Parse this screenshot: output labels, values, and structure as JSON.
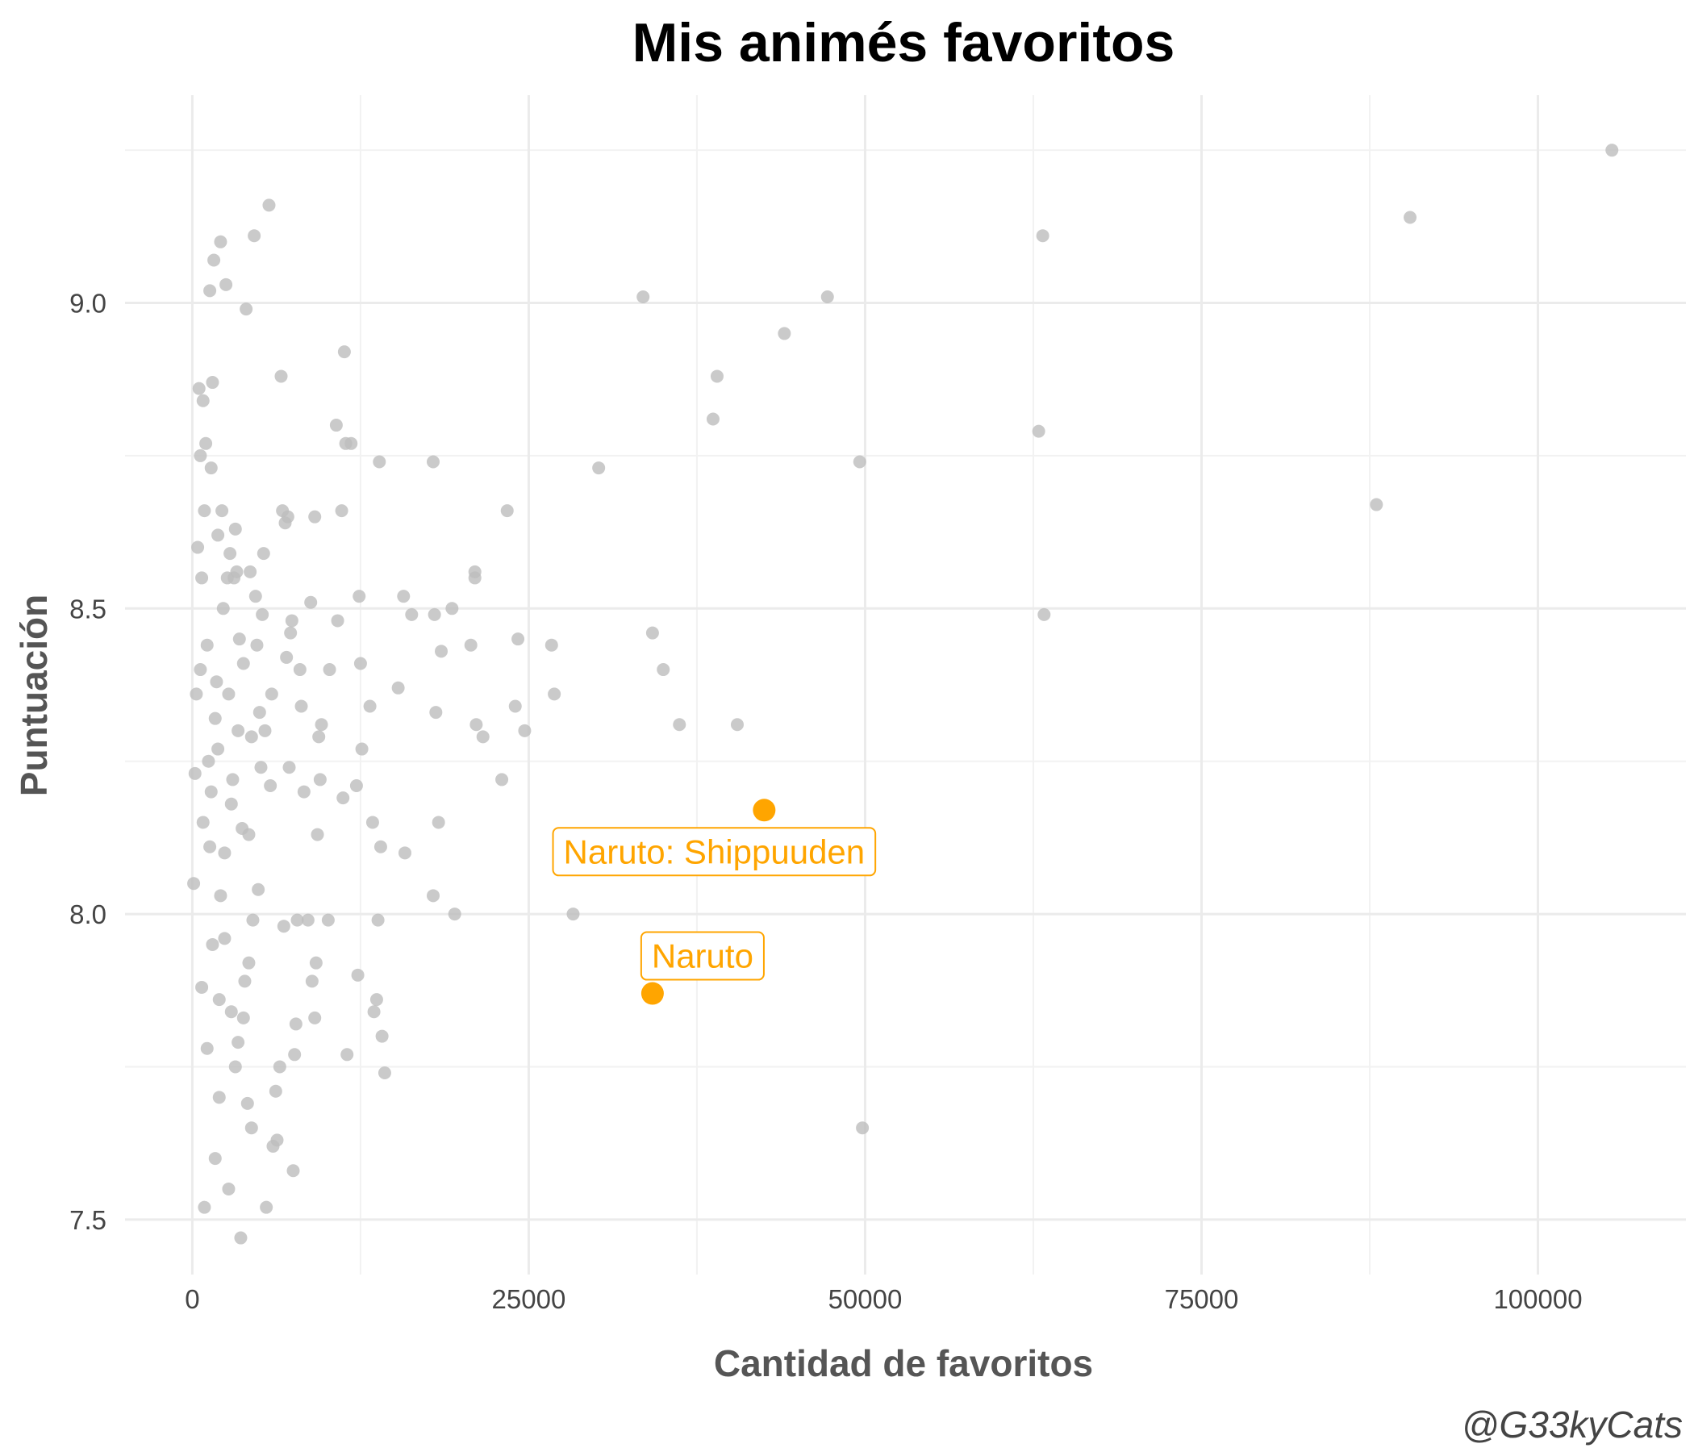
{
  "chart_data": {
    "type": "scatter",
    "title": "Mis animés favoritos",
    "xlabel": "Cantidad de favoritos",
    "ylabel": "Puntuación",
    "caption": "@G33kyCats",
    "xlim": [
      -5000,
      111000
    ],
    "ylim": [
      7.41,
      9.34
    ],
    "x_ticks": [
      0,
      25000,
      50000,
      75000,
      100000
    ],
    "x_tick_labels": [
      "0",
      "25000",
      "50000",
      "75000",
      "100000"
    ],
    "y_ticks": [
      7.5,
      8.0,
      8.5,
      9.0
    ],
    "y_tick_labels": [
      "7.5",
      "8.0",
      "8.5",
      "9.0"
    ],
    "grid": true,
    "point_color": "#bdbdbd",
    "highlight_color": "#ffa500",
    "highlights": [
      {
        "label": "Naruto: Shippuuden",
        "x": 42500,
        "y": 8.17
      },
      {
        "label": "Naruto",
        "x": 34200,
        "y": 7.87
      }
    ],
    "points": [
      [
        105500,
        9.25
      ],
      [
        90500,
        9.14
      ],
      [
        63200,
        9.11
      ],
      [
        47200,
        9.01
      ],
      [
        33500,
        9.01
      ],
      [
        44000,
        8.95
      ],
      [
        39000,
        8.88
      ],
      [
        38700,
        8.81
      ],
      [
        62900,
        8.79
      ],
      [
        49600,
        8.74
      ],
      [
        30200,
        8.73
      ],
      [
        88000,
        8.67
      ],
      [
        63300,
        8.49
      ],
      [
        34200,
        8.46
      ],
      [
        35000,
        8.4
      ],
      [
        36200,
        8.31
      ],
      [
        40500,
        8.31
      ],
      [
        28300,
        8.0
      ],
      [
        49800,
        7.65
      ],
      [
        23400,
        8.66
      ],
      [
        26700,
        8.44
      ],
      [
        26900,
        8.36
      ],
      [
        24200,
        8.45
      ],
      [
        24000,
        8.34
      ],
      [
        24700,
        8.3
      ],
      [
        23000,
        8.22
      ],
      [
        21000,
        8.56
      ],
      [
        21000,
        8.55
      ],
      [
        20700,
        8.44
      ],
      [
        21100,
        8.31
      ],
      [
        21600,
        8.29
      ],
      [
        19500,
        8.0
      ],
      [
        19300,
        8.5
      ],
      [
        18500,
        8.43
      ],
      [
        18000,
        8.49
      ],
      [
        18100,
        8.33
      ],
      [
        18300,
        8.15
      ],
      [
        17900,
        8.74
      ],
      [
        17900,
        8.03
      ],
      [
        16300,
        8.49
      ],
      [
        15700,
        8.52
      ],
      [
        15800,
        8.1
      ],
      [
        15300,
        8.37
      ],
      [
        13900,
        8.74
      ],
      [
        14000,
        8.11
      ],
      [
        13800,
        7.99
      ],
      [
        13700,
        7.86
      ],
      [
        13500,
        7.84
      ],
      [
        14100,
        7.8
      ],
      [
        14300,
        7.74
      ],
      [
        13200,
        8.34
      ],
      [
        13400,
        8.15
      ],
      [
        12600,
        8.27
      ],
      [
        12500,
        8.41
      ],
      [
        12400,
        8.52
      ],
      [
        12300,
        7.9
      ],
      [
        12200,
        8.21
      ],
      [
        11800,
        8.77
      ],
      [
        11400,
        8.77
      ],
      [
        11300,
        8.92
      ],
      [
        11100,
        8.66
      ],
      [
        10700,
        8.8
      ],
      [
        10800,
        8.48
      ],
      [
        11200,
        8.19
      ],
      [
        11500,
        7.77
      ],
      [
        10200,
        8.4
      ],
      [
        10100,
        7.99
      ],
      [
        9600,
        8.31
      ],
      [
        9400,
        8.29
      ],
      [
        9500,
        8.22
      ],
      [
        9300,
        8.13
      ],
      [
        9100,
        8.65
      ],
      [
        9200,
        7.92
      ],
      [
        9100,
        7.83
      ],
      [
        8800,
        8.51
      ],
      [
        8600,
        7.99
      ],
      [
        8900,
        7.89
      ],
      [
        8300,
        8.2
      ],
      [
        8000,
        8.4
      ],
      [
        8100,
        8.34
      ],
      [
        7800,
        7.99
      ],
      [
        7700,
        7.82
      ],
      [
        7600,
        7.77
      ],
      [
        7500,
        7.58
      ],
      [
        7400,
        8.48
      ],
      [
        7300,
        8.46
      ],
      [
        7200,
        8.24
      ],
      [
        7100,
        8.65
      ],
      [
        7000,
        8.42
      ],
      [
        6900,
        8.64
      ],
      [
        6700,
        8.66
      ],
      [
        6600,
        8.88
      ],
      [
        6800,
        7.98
      ],
      [
        6500,
        7.75
      ],
      [
        6300,
        7.63
      ],
      [
        6200,
        7.71
      ],
      [
        6000,
        7.62
      ],
      [
        5900,
        8.36
      ],
      [
        5800,
        8.21
      ],
      [
        5700,
        9.16
      ],
      [
        5500,
        7.52
      ],
      [
        5400,
        8.3
      ],
      [
        5300,
        8.59
      ],
      [
        5200,
        8.49
      ],
      [
        5100,
        8.24
      ],
      [
        5000,
        8.33
      ],
      [
        4900,
        8.04
      ],
      [
        4800,
        8.44
      ],
      [
        4700,
        8.52
      ],
      [
        4600,
        9.11
      ],
      [
        4500,
        7.99
      ],
      [
        4400,
        8.29
      ],
      [
        4300,
        8.56
      ],
      [
        4200,
        8.13
      ],
      [
        4100,
        7.69
      ],
      [
        4000,
        8.99
      ],
      [
        3900,
        7.89
      ],
      [
        3800,
        8.41
      ],
      [
        3700,
        8.14
      ],
      [
        3600,
        7.47
      ],
      [
        3500,
        8.45
      ],
      [
        3400,
        7.79
      ],
      [
        3300,
        8.56
      ],
      [
        3200,
        8.63
      ],
      [
        3100,
        8.55
      ],
      [
        3000,
        8.22
      ],
      [
        2900,
        7.84
      ],
      [
        2800,
        8.59
      ],
      [
        2700,
        8.36
      ],
      [
        2600,
        8.55
      ],
      [
        2500,
        9.03
      ],
      [
        2400,
        7.96
      ],
      [
        2300,
        8.5
      ],
      [
        2200,
        8.66
      ],
      [
        2100,
        9.1
      ],
      [
        2000,
        7.86
      ],
      [
        1900,
        8.62
      ],
      [
        1800,
        8.38
      ],
      [
        1700,
        8.32
      ],
      [
        1600,
        9.07
      ],
      [
        1500,
        8.87
      ],
      [
        1400,
        8.73
      ],
      [
        1300,
        9.02
      ],
      [
        1200,
        8.25
      ],
      [
        1100,
        8.44
      ],
      [
        1000,
        8.77
      ],
      [
        900,
        8.66
      ],
      [
        800,
        8.84
      ],
      [
        700,
        8.55
      ],
      [
        600,
        8.75
      ],
      [
        500,
        8.86
      ],
      [
        400,
        8.6
      ],
      [
        300,
        8.36
      ],
      [
        200,
        8.23
      ],
      [
        100,
        8.05
      ],
      [
        800,
        8.15
      ],
      [
        1500,
        7.95
      ],
      [
        2400,
        8.1
      ],
      [
        3200,
        7.75
      ],
      [
        4200,
        7.92
      ],
      [
        2100,
        8.03
      ],
      [
        1700,
        7.6
      ],
      [
        2700,
        7.55
      ],
      [
        3400,
        8.3
      ],
      [
        1100,
        7.78
      ],
      [
        600,
        8.4
      ],
      [
        900,
        7.52
      ],
      [
        1400,
        8.2
      ],
      [
        2000,
        7.7
      ],
      [
        2900,
        8.18
      ],
      [
        3800,
        7.83
      ],
      [
        4400,
        7.65
      ],
      [
        1300,
        8.11
      ],
      [
        700,
        7.88
      ],
      [
        1900,
        8.27
      ]
    ]
  }
}
